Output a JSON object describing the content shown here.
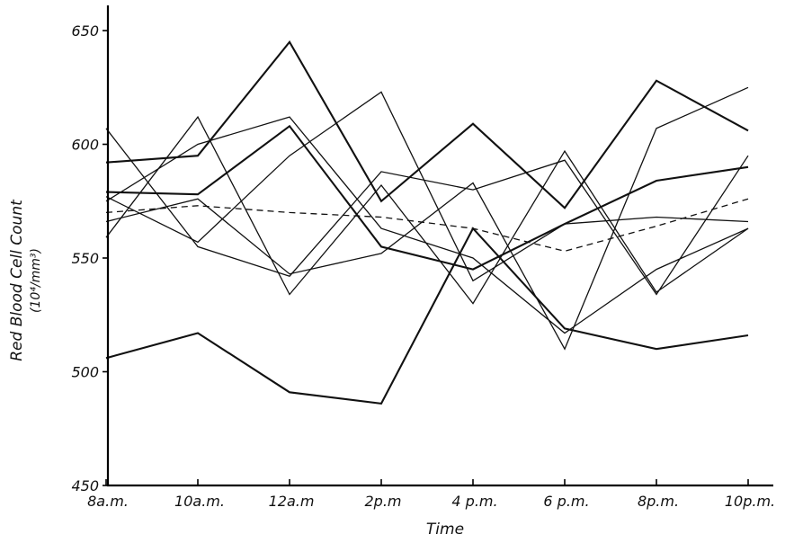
{
  "chart_data": {
    "type": "line",
    "title": "",
    "xlabel": "Time",
    "ylabel": "Red Blood Cell Count",
    "ylabel_unit": "(10⁴/mm³)",
    "categories": [
      "8a.m.",
      "10a.m.",
      "12a.m",
      "2p.m",
      "4 p.m.",
      "6 p.m.",
      "8p.m.",
      "10p.m."
    ],
    "ylim": [
      450,
      660
    ],
    "yticks": [
      450,
      500,
      550,
      600,
      650
    ],
    "ytick_labels": [
      "450",
      "500",
      "550",
      "600",
      "650"
    ],
    "grid": false,
    "legend": "none",
    "series": [
      {
        "values": [
          506,
          517,
          491,
          486,
          563,
          519,
          510,
          516
        ],
        "style": "solid",
        "weight": "bold"
      },
      {
        "values": [
          592,
          595,
          645,
          575,
          609,
          572,
          628,
          606
        ],
        "style": "solid",
        "weight": "bold"
      },
      {
        "values": [
          607,
          555,
          542,
          588,
          580,
          593,
          534,
          595
        ],
        "style": "solid",
        "weight": "normal"
      },
      {
        "values": [
          559,
          612,
          534,
          582,
          530,
          597,
          535,
          563
        ],
        "style": "solid",
        "weight": "normal"
      },
      {
        "values": [
          579,
          578,
          608,
          555,
          545,
          565,
          584,
          590
        ],
        "style": "solid",
        "weight": "bold"
      },
      {
        "values": [
          575,
          600,
          612,
          563,
          550,
          517,
          545,
          563
        ],
        "style": "solid",
        "weight": "normal"
      },
      {
        "values": [
          577,
          557,
          595,
          623,
          540,
          565,
          568,
          566
        ],
        "style": "solid",
        "weight": "normal"
      },
      {
        "values": [
          566,
          576,
          543,
          552,
          583,
          510,
          607,
          625
        ],
        "style": "solid",
        "weight": "normal"
      },
      {
        "values": [
          570,
          573,
          570,
          568,
          563,
          553,
          564,
          576
        ],
        "style": "dashed",
        "weight": "normal"
      }
    ]
  }
}
